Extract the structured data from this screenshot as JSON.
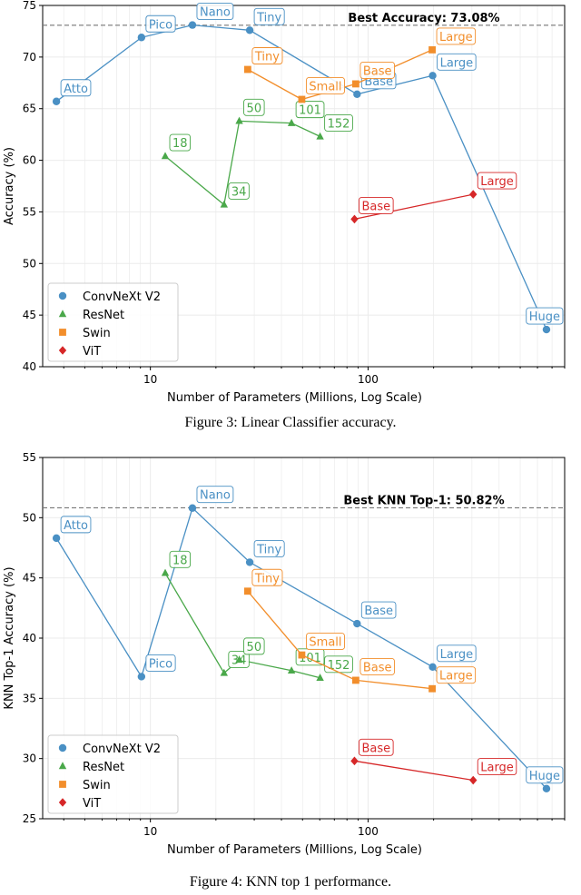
{
  "colors": {
    "ConvNeXt V2": "#4a90c4",
    "ResNet": "#4aa84a",
    "Swin": "#f28e2b",
    "ViT": "#d62728",
    "grid": "#ebebeb",
    "axis": "#000000"
  },
  "chart_data": [
    {
      "type": "line",
      "title": "",
      "xlabel": "Number of Parameters (Millions, Log Scale)",
      "ylabel": "Accuracy (%)",
      "xscale": "log",
      "xlim": [
        3.2,
        800
      ],
      "ylim": [
        40,
        75
      ],
      "yticks": [
        40,
        45,
        50,
        55,
        60,
        65,
        70,
        75
      ],
      "xticks": [
        10,
        100
      ],
      "grid": true,
      "legend_position": "bottom-left",
      "reference_line": {
        "value": 73.08,
        "label": "Best Accuracy: 73.08%"
      },
      "series": [
        {
          "name": "ConvNeXt V2",
          "marker": "circle",
          "points": [
            {
              "x": 3.7,
              "y": 65.7,
              "label": "Atto"
            },
            {
              "x": 9.1,
              "y": 71.9,
              "label": "Pico"
            },
            {
              "x": 15.6,
              "y": 73.1,
              "label": "Nano"
            },
            {
              "x": 28.6,
              "y": 72.6,
              "label": "Tiny"
            },
            {
              "x": 89,
              "y": 66.4,
              "label": "Base"
            },
            {
              "x": 198,
              "y": 68.2,
              "label": "Large"
            },
            {
              "x": 660,
              "y": 43.6,
              "label": "Huge"
            }
          ]
        },
        {
          "name": "ResNet",
          "marker": "triangle",
          "points": [
            {
              "x": 11.7,
              "y": 60.4,
              "label": "18"
            },
            {
              "x": 21.8,
              "y": 55.7,
              "label": "34"
            },
            {
              "x": 25.6,
              "y": 63.8,
              "label": "50"
            },
            {
              "x": 44.5,
              "y": 63.6,
              "label": "101"
            },
            {
              "x": 60.2,
              "y": 62.3,
              "label": "152"
            }
          ]
        },
        {
          "name": "Swin",
          "marker": "square",
          "points": [
            {
              "x": 28,
              "y": 68.8,
              "label": "Tiny"
            },
            {
              "x": 49.6,
              "y": 65.9,
              "label": "Small"
            },
            {
              "x": 87.8,
              "y": 67.4,
              "label": "Base"
            },
            {
              "x": 197,
              "y": 70.7,
              "label": "Large"
            }
          ]
        },
        {
          "name": "ViT",
          "marker": "diamond",
          "points": [
            {
              "x": 86.6,
              "y": 54.3,
              "label": "Base"
            },
            {
              "x": 304,
              "y": 56.7,
              "label": "Large"
            }
          ]
        }
      ]
    },
    {
      "type": "line",
      "title": "",
      "xlabel": "Number of Parameters (Millions, Log Scale)",
      "ylabel": "KNN Top-1 Accuracy (%)",
      "xscale": "log",
      "xlim": [
        3.2,
        800
      ],
      "ylim": [
        25,
        55
      ],
      "yticks": [
        25,
        30,
        35,
        40,
        45,
        50,
        55
      ],
      "xticks": [
        10,
        100
      ],
      "grid": true,
      "legend_position": "bottom-left",
      "reference_line": {
        "value": 50.82,
        "label": "Best KNN Top-1: 50.82%"
      },
      "series": [
        {
          "name": "ConvNeXt V2",
          "marker": "circle",
          "points": [
            {
              "x": 3.7,
              "y": 48.3,
              "label": "Atto"
            },
            {
              "x": 9.1,
              "y": 36.8,
              "label": "Pico"
            },
            {
              "x": 15.6,
              "y": 50.8,
              "label": "Nano"
            },
            {
              "x": 28.6,
              "y": 46.3,
              "label": "Tiny"
            },
            {
              "x": 89,
              "y": 41.2,
              "label": "Base"
            },
            {
              "x": 198,
              "y": 37.6,
              "label": "Large"
            },
            {
              "x": 660,
              "y": 27.5,
              "label": "Huge"
            }
          ]
        },
        {
          "name": "ResNet",
          "marker": "triangle",
          "points": [
            {
              "x": 11.7,
              "y": 45.4,
              "label": "18"
            },
            {
              "x": 21.8,
              "y": 37.1,
              "label": "34"
            },
            {
              "x": 25.6,
              "y": 38.2,
              "label": "50"
            },
            {
              "x": 44.5,
              "y": 37.3,
              "label": "101"
            },
            {
              "x": 60.2,
              "y": 36.7,
              "label": "152"
            }
          ]
        },
        {
          "name": "Swin",
          "marker": "square",
          "points": [
            {
              "x": 28,
              "y": 43.9,
              "label": "Tiny"
            },
            {
              "x": 49.6,
              "y": 38.6,
              "label": "Small"
            },
            {
              "x": 87.8,
              "y": 36.5,
              "label": "Base"
            },
            {
              "x": 197,
              "y": 35.8,
              "label": "Large"
            }
          ]
        },
        {
          "name": "ViT",
          "marker": "diamond",
          "points": [
            {
              "x": 86.6,
              "y": 29.8,
              "label": "Base"
            },
            {
              "x": 304,
              "y": 28.2,
              "label": "Large"
            }
          ]
        }
      ]
    }
  ],
  "captions": {
    "figure3": "Figure 3: Linear Classifier accuracy.",
    "figure4": "Figure 4: KNN top 1 performance."
  }
}
